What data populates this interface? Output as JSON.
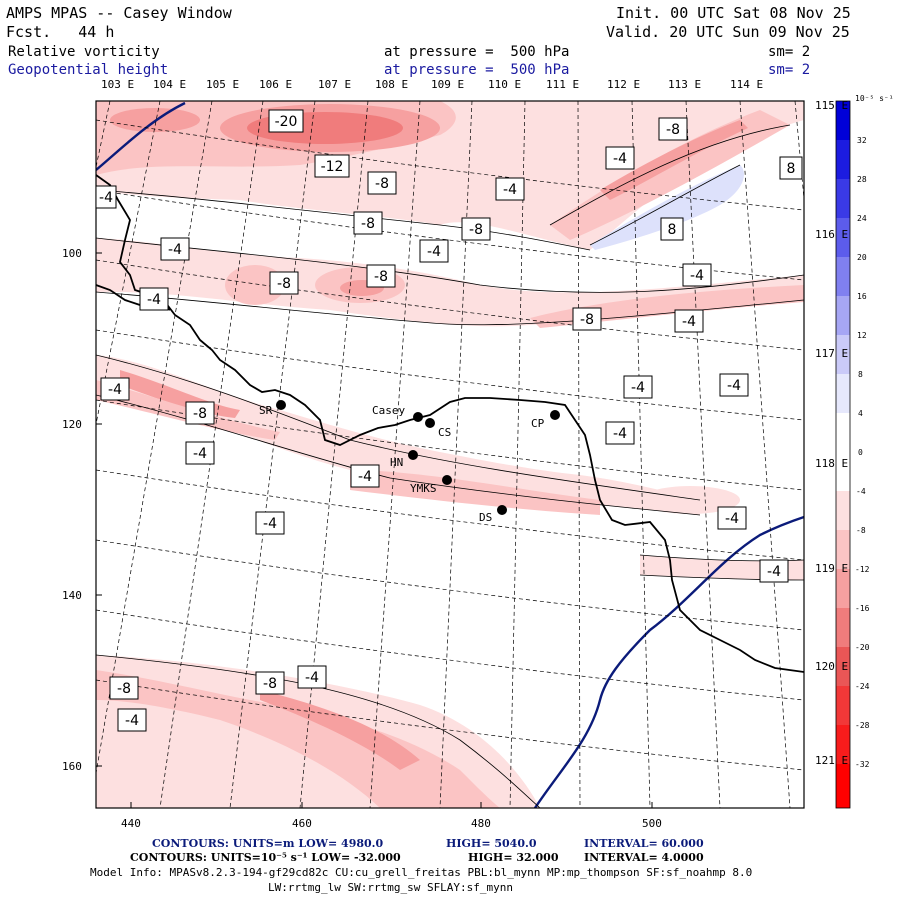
{
  "header": {
    "title": "AMPS MPAS -- Casey Window",
    "forecast": "Fcst.   44 h",
    "init": "Init. 00 UTC Sat 08 Nov 25",
    "valid": "Valid. 20 UTC Sun 09 Nov 25",
    "field1_name": "Relative vorticity",
    "field1_level": "at pressure =  500 hPa",
    "field1_smooth": "sm= 2",
    "field2_name": "Geopotential height",
    "field2_level": "at pressure =  500 hPa",
    "field2_smooth": "sm= 2"
  },
  "longitude_labels": [
    "103 E",
    "104 E",
    "105 E",
    "106 E",
    "107 E",
    "108 E",
    "109 E",
    "110 E",
    "111 E",
    "112 E",
    "113 E",
    "114 E"
  ],
  "latitude_labels": [
    "115 E",
    "116 E",
    "117 E",
    "118 E",
    "119 E",
    "120 E",
    "121 E"
  ],
  "y_axis_ticks": [
    "100",
    "120",
    "140",
    "160"
  ],
  "x_axis_ticks": [
    "440",
    "460",
    "480",
    "500"
  ],
  "colorbar": {
    "units": "10⁻⁵ s⁻¹",
    "labels": [
      "32",
      "28",
      "24",
      "20",
      "16",
      "12",
      "8",
      "4",
      "0",
      "-4",
      "-8",
      "-12",
      "-16",
      "-20",
      "-24",
      "-28",
      "-32"
    ],
    "positive_color": "#0000d8",
    "negative_color": "#ff0000"
  },
  "contour_labels": [
    "-20",
    "-12",
    "-8",
    "-8",
    "-8",
    "-8",
    "-4",
    "-4",
    "-4",
    "-4",
    "-4",
    "-4",
    "-8",
    "-8",
    "-4",
    "-4",
    "-4",
    "-4",
    "-8",
    "-8",
    "-4",
    "-4",
    "-4",
    "-4",
    "8",
    "8",
    "-4",
    "-4",
    "-8",
    "-8",
    "-4",
    "-4",
    "-4"
  ],
  "stations": [
    {
      "name": "SR"
    },
    {
      "name": "Casey"
    },
    {
      "name": "CS"
    },
    {
      "name": "HN"
    },
    {
      "name": "YMKS"
    },
    {
      "name": "DS"
    },
    {
      "name": "CP"
    }
  ],
  "footer": {
    "line1_a": "CONTOURS:  UNITS=m  LOW=  4980.0",
    "line1_b": "HIGH=  5040.0",
    "line1_c": "INTERVAL=  60.000",
    "line2_a": "CONTOURS:  UNITS=10⁻⁵ s⁻¹  LOW= -32.000",
    "line2_b": "HIGH=  32.000",
    "line2_c": "INTERVAL=  4.0000",
    "line3": "Model Info: MPASv8.2.3-194-gf29cd82c CU:cu_grell_freitas PBL:bl_mynn MP:mp_thompson SF:sf_noahmp 8.0",
    "line4": "LW:rrtmg_lw SW:rrtmg_sw SFLAY:sf_mynn"
  }
}
